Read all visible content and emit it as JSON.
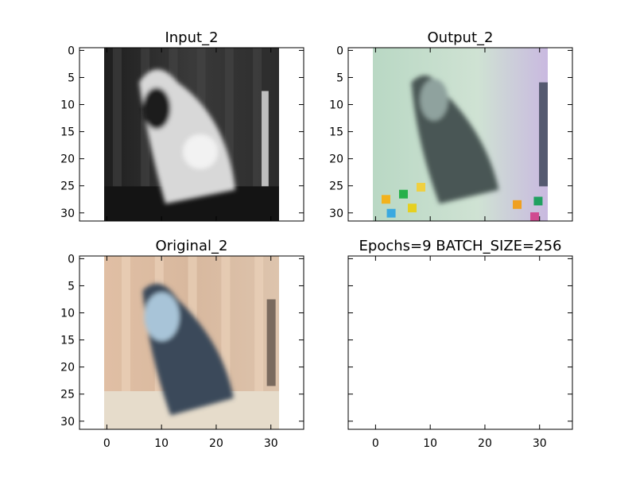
{
  "chart_data": [
    {
      "type": "image",
      "title": "Input_2",
      "xlim": [
        -5,
        36
      ],
      "ylim": [
        31.5,
        -0.5
      ],
      "xticks": [],
      "yticks": [
        0,
        5,
        10,
        15,
        20,
        25,
        30
      ],
      "image": {
        "extent_x": [
          -0.5,
          31.5
        ],
        "colormap": "gray",
        "description": "grayscale bird on dark background"
      }
    },
    {
      "type": "image",
      "title": "Output_2",
      "xlim": [
        -5,
        36
      ],
      "ylim": [
        31.5,
        -0.5
      ],
      "xticks": [],
      "yticks": [
        0,
        5,
        10,
        15,
        20,
        25,
        30
      ],
      "image": {
        "extent_x": [
          -0.5,
          31.5
        ],
        "colormap": "pastel",
        "description": "colorized bird, noisy pastel tones"
      }
    },
    {
      "type": "image",
      "title": "Original_2",
      "xlim": [
        -5,
        36
      ],
      "ylim": [
        31.5,
        -0.5
      ],
      "xticks": [
        0,
        10,
        20,
        30
      ],
      "yticks": [
        0,
        5,
        10,
        15,
        20,
        25,
        30
      ],
      "image": {
        "extent_x": [
          -0.5,
          31.5
        ],
        "colormap": "natural",
        "description": "blue-gray bird on peach background"
      }
    },
    {
      "type": "empty",
      "title": "Epochs=9 BATCH_SIZE=256",
      "xlim": [
        -5,
        36
      ],
      "ylim": [
        31.5,
        -0.5
      ],
      "xticks": [
        0,
        10,
        20,
        30
      ],
      "yticks": []
    }
  ],
  "colors": {
    "input_dark": "#2a2a2a",
    "input_light": "#e6e6e6",
    "output_bg": "#c8dccb",
    "output_bird": "#3d4a48",
    "original_bg": "#d9b9a0",
    "original_bird": "#4a6070"
  }
}
